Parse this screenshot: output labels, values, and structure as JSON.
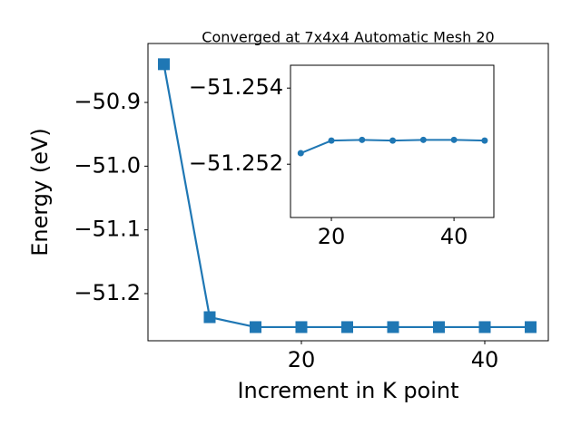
{
  "chart_data": [
    {
      "type": "line",
      "title": "Converged at 7x4x4 Automatic Mesh 20",
      "xlabel": "Increment in K point",
      "ylabel": "Energy (eV)",
      "x": [
        5,
        10,
        15,
        20,
        25,
        30,
        35,
        40,
        45
      ],
      "values": [
        -50.84,
        -51.237,
        -51.2526,
        -51.2526,
        -51.2526,
        -51.2526,
        -51.2526,
        -51.2526,
        -51.2526
      ],
      "color": "#1f77b4",
      "marker": "square",
      "xlim": [
        3.27,
        46.93
      ],
      "xticks": [
        20,
        40
      ],
      "ylim": [
        -51.274,
        -50.8075
      ],
      "yticks": [
        {
          "value": -51.2,
          "label": "−51.2"
        },
        {
          "value": -51.1,
          "label": "−51.1"
        },
        {
          "value": -51.0,
          "label": "−51.0"
        },
        {
          "value": -50.9,
          "label": "−50.9"
        }
      ]
    },
    {
      "type": "line",
      "x": [
        15,
        20,
        25,
        30,
        35,
        40,
        45
      ],
      "values": [
        -51.25229,
        -51.25262,
        -51.25264,
        -51.25262,
        -51.25264,
        -51.25264,
        -51.25262
      ],
      "color": "#1f77b4",
      "marker": "circle",
      "xlim": [
        13.33,
        46.5
      ],
      "xticks": [
        20,
        40
      ],
      "ylim": [
        -51.2506,
        -51.2546
      ],
      "yticks": [
        {
          "value": -51.252,
          "label": "−51.252"
        },
        {
          "value": -51.254,
          "label": "−51.254"
        }
      ]
    }
  ]
}
